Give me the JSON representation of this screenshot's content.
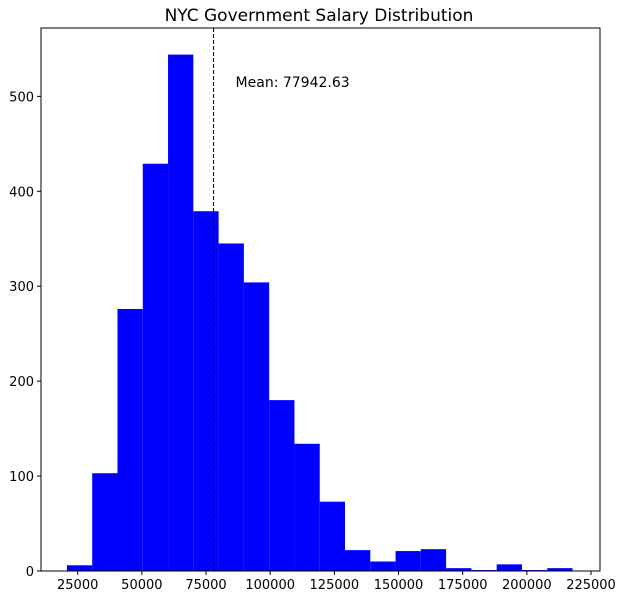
{
  "chart_data": {
    "type": "histogram",
    "title": "NYC Government Salary Distribution",
    "xlabel": "",
    "ylabel": "",
    "xlim": [
      10700,
      228500
    ],
    "ylim": [
      0,
      572
    ],
    "x_ticks": [
      25000,
      50000,
      75000,
      100000,
      125000,
      150000,
      175000,
      200000,
      225000
    ],
    "y_ticks": [
      0,
      100,
      200,
      300,
      400,
      500
    ],
    "bar_color": "#0000ff",
    "grid": false,
    "bins": [
      {
        "start": 20800,
        "end": 30650,
        "count": 6
      },
      {
        "start": 30650,
        "end": 40500,
        "count": 103
      },
      {
        "start": 40500,
        "end": 50350,
        "count": 276
      },
      {
        "start": 50350,
        "end": 60200,
        "count": 429
      },
      {
        "start": 60200,
        "end": 70050,
        "count": 544
      },
      {
        "start": 70050,
        "end": 79900,
        "count": 379
      },
      {
        "start": 79900,
        "end": 89750,
        "count": 345
      },
      {
        "start": 89750,
        "end": 99600,
        "count": 304
      },
      {
        "start": 99600,
        "end": 109450,
        "count": 180
      },
      {
        "start": 109450,
        "end": 119300,
        "count": 134
      },
      {
        "start": 119300,
        "end": 129150,
        "count": 73
      },
      {
        "start": 129150,
        "end": 139000,
        "count": 22
      },
      {
        "start": 139000,
        "end": 148850,
        "count": 10
      },
      {
        "start": 148850,
        "end": 158700,
        "count": 21
      },
      {
        "start": 158700,
        "end": 168550,
        "count": 23
      },
      {
        "start": 168550,
        "end": 178400,
        "count": 3
      },
      {
        "start": 178400,
        "end": 188250,
        "count": 1
      },
      {
        "start": 188250,
        "end": 198100,
        "count": 7
      },
      {
        "start": 198100,
        "end": 207950,
        "count": 1
      },
      {
        "start": 207950,
        "end": 217800,
        "count": 3
      }
    ],
    "mean_line": {
      "value": 77942.63,
      "style": "dashed",
      "color": "#000000"
    },
    "annotation": {
      "text": "Mean: 77942.63",
      "x": 86500,
      "y": 510
    }
  }
}
